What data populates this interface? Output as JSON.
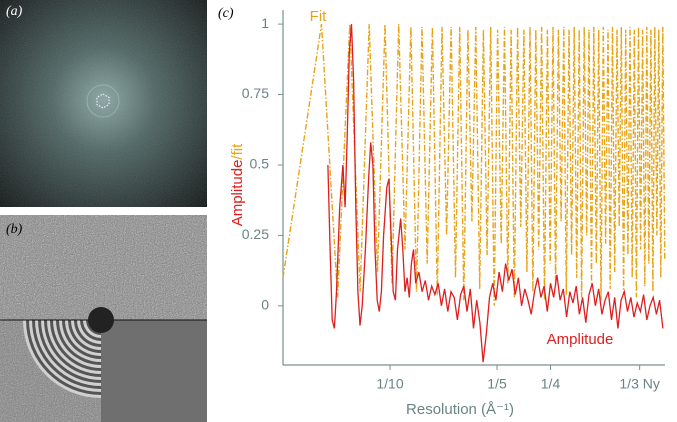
{
  "panel_labels": [
    "(a)",
    "(b)",
    "(c)"
  ],
  "chart_data": {
    "type": "line",
    "ylabel": [
      "Amplitude",
      "/fit"
    ],
    "xlabel": "Resolution (Å⁻¹)",
    "xlim": [
      0,
      0.357
    ],
    "ylim": [
      -0.21,
      1.05
    ],
    "xticks": [
      {
        "value": 0.1,
        "label": "1/10"
      },
      {
        "value": 0.2,
        "label": "1/5"
      },
      {
        "value": 0.25,
        "label": "1/4"
      },
      {
        "value": 0.3333,
        "label": "1/3 Ny"
      }
    ],
    "yticks": [
      0,
      0.25,
      0.5,
      0.75,
      1
    ],
    "grid": false,
    "series": [
      {
        "name": "Fit",
        "color": "#e8a317",
        "style": "dashdot",
        "x": [
          0,
          0.036,
          0.051,
          0.0624,
          0.0721,
          0.0806,
          0.0883,
          0.0953,
          0.1019,
          0.1081,
          0.114,
          0.1195,
          0.1248,
          0.1299,
          0.1348,
          0.1396,
          0.1442,
          0.1486,
          0.1529,
          0.1571,
          0.1612,
          0.1651,
          0.169,
          0.1728,
          0.1765,
          0.1802,
          0.1838,
          0.1873,
          0.1907,
          0.1941,
          0.1974,
          0.2006,
          0.2039,
          0.207,
          0.2101,
          0.2132,
          0.2162,
          0.2192,
          0.2222,
          0.2251,
          0.2279,
          0.2308,
          0.2335,
          0.2363,
          0.239,
          0.2417,
          0.2444,
          0.2471,
          0.2497,
          0.2523,
          0.2548,
          0.2574,
          0.2599,
          0.2624,
          0.2648,
          0.2673,
          0.2697,
          0.2721,
          0.2745,
          0.2768,
          0.2791,
          0.2815,
          0.2838,
          0.286,
          0.2883,
          0.2905,
          0.2928,
          0.295,
          0.2972,
          0.2993,
          0.3015,
          0.3037,
          0.3058,
          0.3079,
          0.31,
          0.3121,
          0.3142,
          0.3162,
          0.3183,
          0.3203,
          0.3223,
          0.3243,
          0.3263,
          0.3283,
          0.3303,
          0.3322,
          0.3342,
          0.3361,
          0.3381,
          0.34,
          0.3419,
          0.3438,
          0.3457,
          0.3475,
          0.3494,
          0.3512,
          0.3531,
          0.3549,
          0.3568
        ],
        "values": [
          0.1,
          1,
          0.03,
          1,
          0.05,
          1,
          0.12,
          1,
          0.08,
          1,
          0.2,
          0.99,
          0.05,
          0.99,
          0.15,
          0.99,
          0.04,
          0.99,
          0.25,
          0.99,
          0.1,
          0.99,
          0.02,
          0.98,
          0.3,
          0.99,
          0.06,
          0.98,
          0.18,
          0.99,
          0,
          0.98,
          0.22,
          0.99,
          0.08,
          0.98,
          0.03,
          0.99,
          0.28,
          0.98,
          0.12,
          0.99,
          0.05,
          0.98,
          0.2,
          0.99,
          0.02,
          0.98,
          0.15,
          0.99,
          0.07,
          0.98,
          0.3,
          0.99,
          0.04,
          0.98,
          0.18,
          0.99,
          0.1,
          0.98,
          0.03,
          0.99,
          0.25,
          0.98,
          0.08,
          0.99,
          0.15,
          0.98,
          0.02,
          0.99,
          0.22,
          0.98,
          0.06,
          0.99,
          0.12,
          0.98,
          0.28,
          0.99,
          0.04,
          0.98,
          0.18,
          0.99,
          0.1,
          0.98,
          0.03,
          0.99,
          0.2,
          0.98,
          0.07,
          0.99,
          0.15,
          0.98,
          0.05,
          0.99,
          0.25,
          0.98,
          0.1,
          0.99,
          0.16
        ]
      },
      {
        "name": "Amplitude",
        "color": "#dd1f1f",
        "style": "solid",
        "x": [
          0.042,
          0.044,
          0.046,
          0.048,
          0.05,
          0.053,
          0.056,
          0.058,
          0.06,
          0.062,
          0.064,
          0.066,
          0.068,
          0.07,
          0.072,
          0.074,
          0.077,
          0.08,
          0.082,
          0.084,
          0.086,
          0.088,
          0.09,
          0.092,
          0.094,
          0.097,
          0.099,
          0.101,
          0.103,
          0.105,
          0.107,
          0.11,
          0.112,
          0.114,
          0.116,
          0.118,
          0.12,
          0.122,
          0.124,
          0.127,
          0.13,
          0.133,
          0.136,
          0.139,
          0.142,
          0.145,
          0.148,
          0.151,
          0.154,
          0.157,
          0.16,
          0.163,
          0.166,
          0.169,
          0.172,
          0.175,
          0.178,
          0.181,
          0.184,
          0.187,
          0.19,
          0.193,
          0.196,
          0.199,
          0.202,
          0.205,
          0.208,
          0.211,
          0.214,
          0.217,
          0.22,
          0.223,
          0.226,
          0.229,
          0.232,
          0.235,
          0.238,
          0.241,
          0.244,
          0.247,
          0.25,
          0.253,
          0.256,
          0.259,
          0.262,
          0.265,
          0.268,
          0.271,
          0.274,
          0.277,
          0.28,
          0.283,
          0.286,
          0.289,
          0.292,
          0.295,
          0.298,
          0.301,
          0.304,
          0.307,
          0.31,
          0.313,
          0.316,
          0.319,
          0.322,
          0.325,
          0.328,
          0.331,
          0.334,
          0.337,
          0.34,
          0.343,
          0.346,
          0.349,
          0.352,
          0.355
        ],
        "values": [
          0.5,
          0.2,
          -0.05,
          -0.08,
          0.05,
          0.35,
          0.5,
          0.35,
          0.6,
          0.9,
          1,
          0.8,
          0.35,
          0.05,
          -0.07,
          0,
          0.2,
          0.45,
          0.58,
          0.5,
          0.2,
          0.02,
          -0.02,
          0.05,
          0.25,
          0.42,
          0.45,
          0.25,
          0.05,
          0.02,
          0.2,
          0.31,
          0.2,
          0.05,
          0.1,
          0.03,
          0.15,
          0.2,
          0.08,
          0.12,
          0.05,
          0.09,
          0.02,
          0.07,
          0.04,
          0.08,
          0,
          0.06,
          -0.02,
          0.05,
          0.03,
          -0.05,
          0.04,
          0.07,
          -0.02,
          0.06,
          -0.08,
          0.02,
          -0.06,
          -0.2,
          -0.1,
          0.03,
          0.08,
          0.02,
          0.12,
          0.05,
          0.15,
          0.09,
          0.13,
          0.04,
          0.1,
          0,
          0.06,
          0.02,
          -0.03,
          0.05,
          0.1,
          0.03,
          0.07,
          -0.02,
          0.08,
          0.03,
          0.11,
          0.02,
          0.06,
          -0.04,
          0.05,
          0.01,
          0.07,
          -0.03,
          0.03,
          -0.06,
          0.04,
          0.08,
          0,
          0.06,
          -0.03,
          0.02,
          0.05,
          -0.05,
          0.03,
          -0.08,
          0.02,
          0.05,
          -0.02,
          0.03,
          -0.04,
          0.01,
          -0.02,
          0.04,
          -0.05,
          0,
          0.03,
          -0.03,
          0.02,
          -0.08
        ]
      }
    ]
  }
}
